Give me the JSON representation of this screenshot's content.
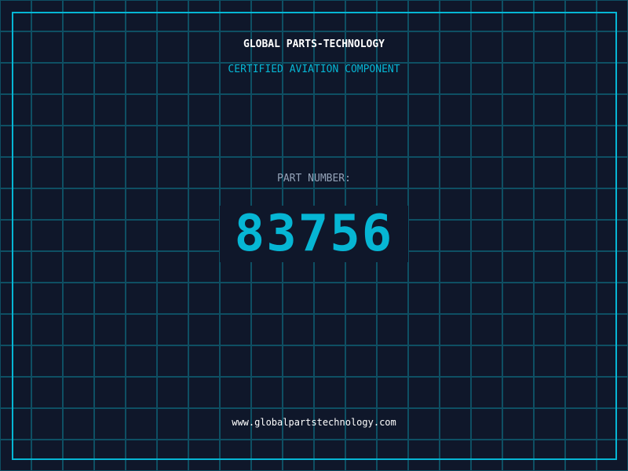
{
  "header": {
    "title": "GLOBAL PARTS-TECHNOLOGY",
    "subtitle": "CERTIFIED AVIATION COMPONENT"
  },
  "part": {
    "label": "PART NUMBER:",
    "number": "83756"
  },
  "footer": {
    "url": "www.globalpartstechnology.com"
  },
  "colors": {
    "accent": "#06b6d4",
    "background": "#0f172a",
    "grid": "#0e4f63"
  }
}
